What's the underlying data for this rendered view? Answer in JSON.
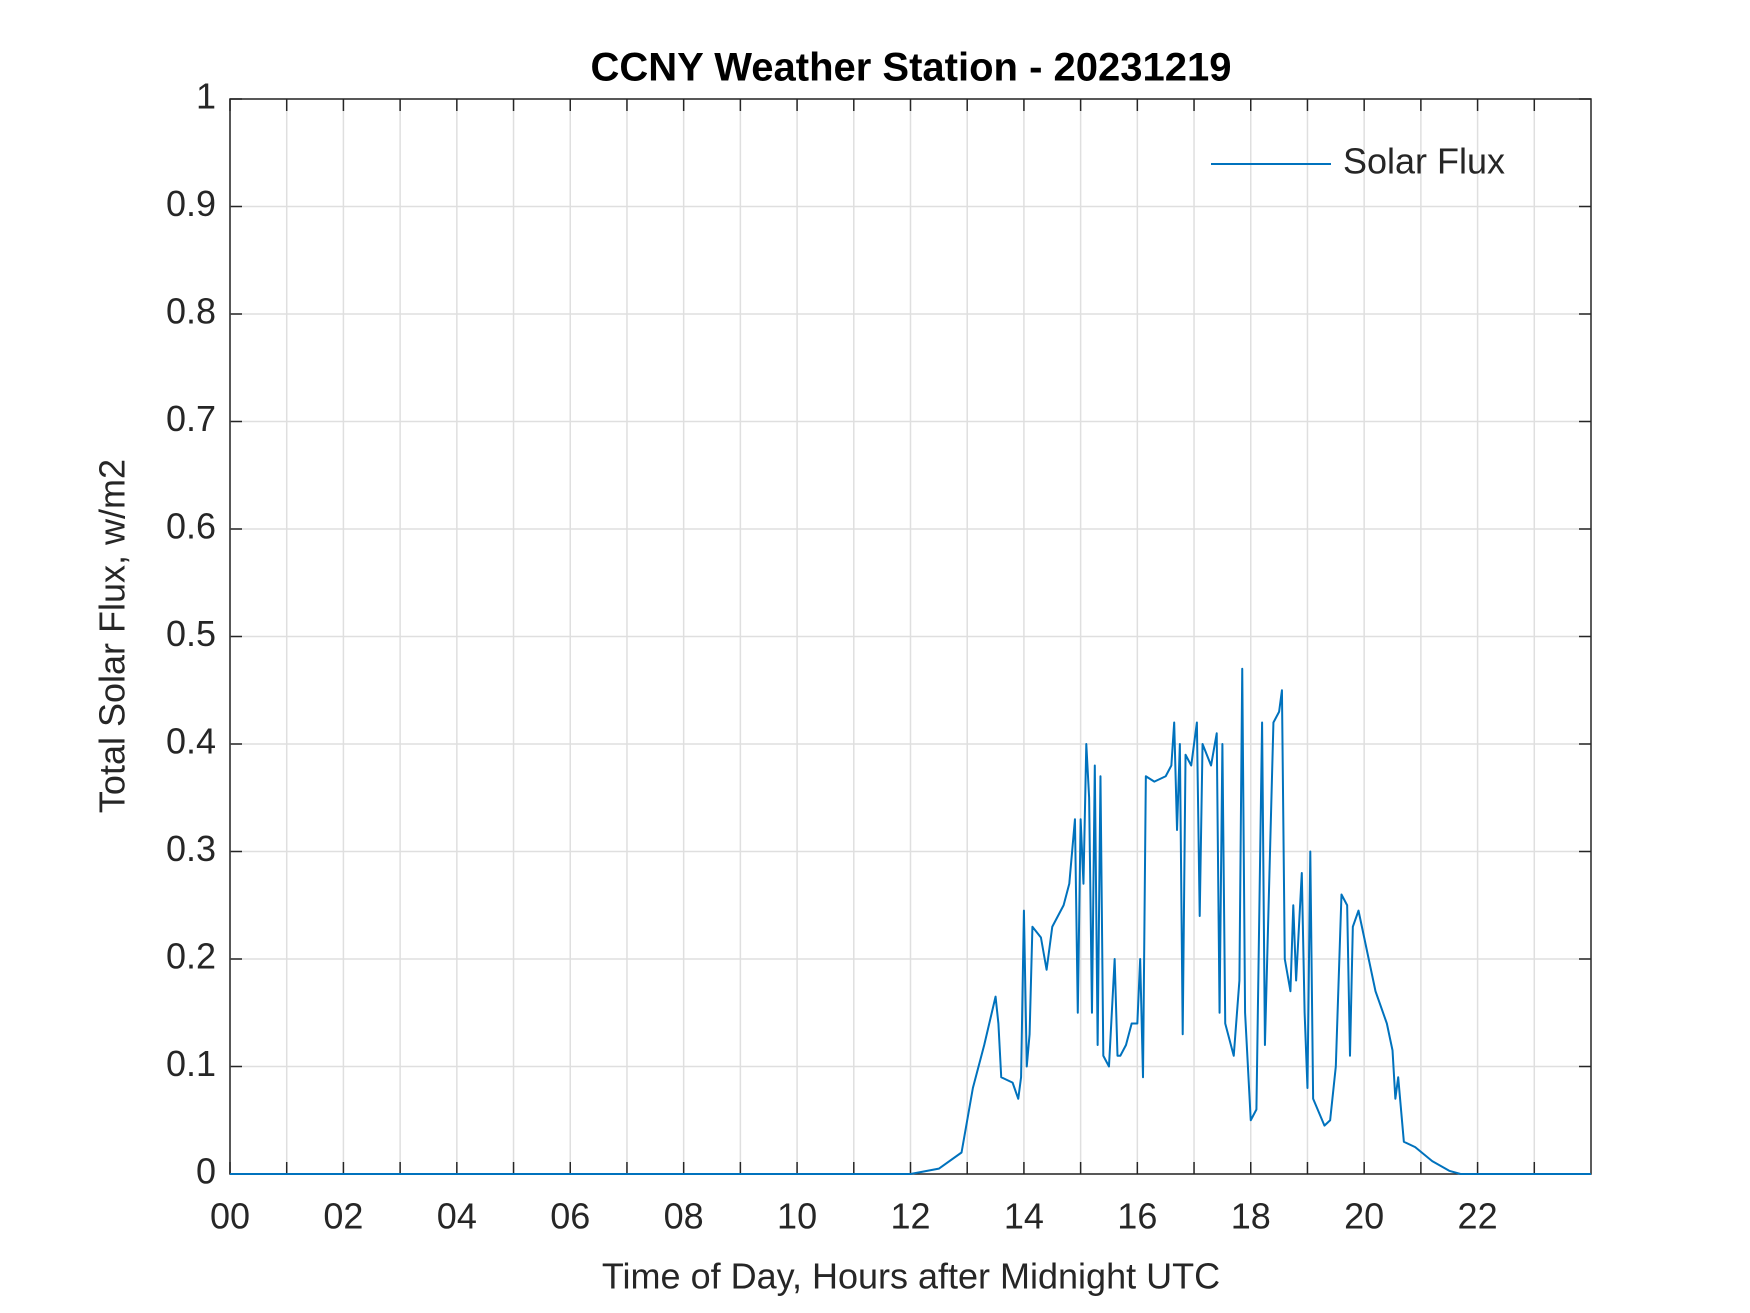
{
  "chart_data": {
    "type": "line",
    "title": "CCNY Weather Station - 20231219",
    "xlabel": "Time of Day, Hours after Midnight UTC",
    "ylabel": "Total Solar Flux, w/m2",
    "xlim": [
      0,
      24
    ],
    "ylim": [
      0,
      1
    ],
    "xticks": [
      {
        "value": 0,
        "label": "00"
      },
      {
        "value": 2,
        "label": "02"
      },
      {
        "value": 4,
        "label": "04"
      },
      {
        "value": 6,
        "label": "06"
      },
      {
        "value": 8,
        "label": "08"
      },
      {
        "value": 10,
        "label": "10"
      },
      {
        "value": 12,
        "label": "12"
      },
      {
        "value": 14,
        "label": "14"
      },
      {
        "value": 16,
        "label": "16"
      },
      {
        "value": 18,
        "label": "18"
      },
      {
        "value": 20,
        "label": "20"
      },
      {
        "value": 22,
        "label": "22"
      }
    ],
    "minor_xticks": [
      1,
      3,
      5,
      7,
      9,
      11,
      13,
      15,
      17,
      19,
      21,
      23
    ],
    "yticks": [
      0,
      0.1,
      0.2,
      0.3,
      0.4,
      0.5,
      0.6,
      0.7,
      0.8,
      0.9,
      1
    ],
    "grid": true,
    "legend": "northeast",
    "x": [
      0,
      12.0,
      12.5,
      12.9,
      13.0,
      13.1,
      13.3,
      13.5,
      13.55,
      13.6,
      13.8,
      13.9,
      13.95,
      14.0,
      14.05,
      14.1,
      14.15,
      14.3,
      14.4,
      14.5,
      14.7,
      14.8,
      14.9,
      14.95,
      15.0,
      15.05,
      15.1,
      15.15,
      15.2,
      15.25,
      15.3,
      15.35,
      15.4,
      15.5,
      15.6,
      15.65,
      15.7,
      15.8,
      15.9,
      16.0,
      16.05,
      16.1,
      16.15,
      16.3,
      16.5,
      16.6,
      16.65,
      16.7,
      16.75,
      16.8,
      16.85,
      16.95,
      17.05,
      17.1,
      17.15,
      17.3,
      17.4,
      17.45,
      17.5,
      17.55,
      17.7,
      17.8,
      17.85,
      17.9,
      18.0,
      18.1,
      18.2,
      18.25,
      18.4,
      18.5,
      18.55,
      18.6,
      18.7,
      18.75,
      18.8,
      18.9,
      18.95,
      19.0,
      19.05,
      19.1,
      19.3,
      19.4,
      19.5,
      19.6,
      19.7,
      19.75,
      19.8,
      19.9,
      20.0,
      20.2,
      20.4,
      20.5,
      20.55,
      20.6,
      20.7,
      20.9,
      21.2,
      21.5,
      21.7,
      24
    ],
    "series": [
      {
        "name": "Solar Flux",
        "color": "#0072bd",
        "values": [
          0,
          0,
          0.005,
          0.02,
          0.05,
          0.08,
          0.12,
          0.165,
          0.14,
          0.09,
          0.085,
          0.07,
          0.09,
          0.245,
          0.1,
          0.13,
          0.23,
          0.22,
          0.19,
          0.23,
          0.25,
          0.27,
          0.33,
          0.15,
          0.33,
          0.27,
          0.4,
          0.35,
          0.15,
          0.38,
          0.12,
          0.37,
          0.11,
          0.1,
          0.2,
          0.11,
          0.11,
          0.12,
          0.14,
          0.14,
          0.2,
          0.09,
          0.37,
          0.365,
          0.37,
          0.38,
          0.42,
          0.32,
          0.4,
          0.13,
          0.39,
          0.38,
          0.42,
          0.24,
          0.4,
          0.38,
          0.41,
          0.15,
          0.4,
          0.14,
          0.11,
          0.18,
          0.47,
          0.15,
          0.05,
          0.06,
          0.42,
          0.12,
          0.42,
          0.43,
          0.45,
          0.2,
          0.17,
          0.25,
          0.18,
          0.28,
          0.15,
          0.08,
          0.3,
          0.07,
          0.045,
          0.05,
          0.1,
          0.26,
          0.25,
          0.11,
          0.23,
          0.245,
          0.22,
          0.17,
          0.14,
          0.115,
          0.07,
          0.09,
          0.03,
          0.025,
          0.012,
          0.003,
          0,
          0
        ]
      }
    ]
  }
}
